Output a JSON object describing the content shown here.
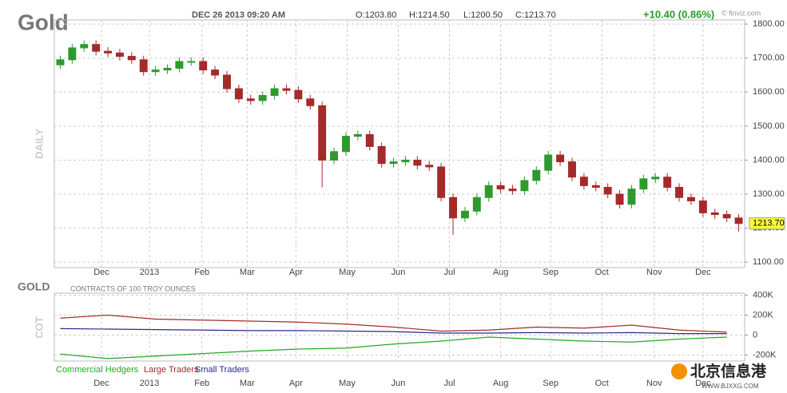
{
  "header": {
    "title": "Gold",
    "datetime": "DEC 26 2013 09:20 AM",
    "open": "O:1203.80",
    "high": "H:1214.50",
    "low": "L:1200.50",
    "close": "C:1213.70",
    "change": "+10.40 (0.86%)",
    "source": "© finviz.com",
    "panel_label": "DAILY",
    "watermark": "北京信息港",
    "watermark_url": "WWW.BJXXG.COM"
  },
  "chart_data": [
    {
      "type": "candlestick",
      "ylim": [
        1084,
        1812
      ],
      "xlim": [
        -0.5,
        57.5
      ],
      "yticks": [
        {
          "value": 1100,
          "label": "1100.00"
        },
        {
          "value": 1200,
          "label": "1200.00"
        },
        {
          "value": 1300,
          "label": "1300.00"
        },
        {
          "value": 1400,
          "label": "1400.00"
        },
        {
          "value": 1500,
          "label": "1500.00"
        },
        {
          "value": 1600,
          "label": "1600.00"
        },
        {
          "value": 1700,
          "label": "1700.00"
        },
        {
          "value": 1800,
          "label": "1800.00"
        }
      ],
      "xticks": [
        {
          "value": 3.46,
          "label": "Dec"
        },
        {
          "value": 7.49,
          "label": "2013"
        },
        {
          "value": 11.9,
          "label": "Feb"
        },
        {
          "value": 15.7,
          "label": "Mar"
        },
        {
          "value": 19.8,
          "label": "Apr"
        },
        {
          "value": 24.1,
          "label": "May"
        },
        {
          "value": 28.4,
          "label": "Jun"
        },
        {
          "value": 32.7,
          "label": "Jul"
        },
        {
          "value": 37.0,
          "label": "Aug"
        },
        {
          "value": 41.2,
          "label": "Sep"
        },
        {
          "value": 45.5,
          "label": "Oct"
        },
        {
          "value": 49.9,
          "label": "Nov"
        },
        {
          "value": 54.0,
          "label": "Dec"
        }
      ],
      "up_color": "#2e9a2e",
      "down_color": "#a52a2a",
      "grid": true,
      "open": [
        1680,
        1695,
        1730,
        1740,
        1720,
        1715,
        1705,
        1695,
        1660,
        1665,
        1670,
        1690,
        1690,
        1665,
        1650,
        1610,
        1580,
        1575,
        1590,
        1610,
        1605,
        1580,
        1560,
        1400,
        1425,
        1470,
        1475,
        1440,
        1390,
        1395,
        1400,
        1385,
        1380,
        1290,
        1230,
        1250,
        1290,
        1325,
        1315,
        1310,
        1340,
        1370,
        1415,
        1395,
        1350,
        1325,
        1320,
        1300,
        1270,
        1315,
        1345,
        1350,
        1320,
        1290,
        1280,
        1245,
        1240,
        1230
      ],
      "high": [
        1707,
        1742,
        1752,
        1752,
        1732,
        1727,
        1717,
        1707,
        1677,
        1682,
        1702,
        1702,
        1702,
        1677,
        1662,
        1622,
        1592,
        1602,
        1622,
        1622,
        1617,
        1592,
        1572,
        1437,
        1482,
        1487,
        1487,
        1452,
        1407,
        1412,
        1412,
        1397,
        1392,
        1302,
        1262,
        1302,
        1337,
        1337,
        1327,
        1352,
        1382,
        1427,
        1427,
        1407,
        1362,
        1337,
        1332,
        1312,
        1327,
        1357,
        1362,
        1362,
        1332,
        1302,
        1292,
        1257,
        1252,
        1242
      ],
      "low": [
        1668,
        1683,
        1718,
        1708,
        1703,
        1693,
        1683,
        1648,
        1648,
        1653,
        1658,
        1678,
        1653,
        1638,
        1598,
        1568,
        1563,
        1563,
        1578,
        1593,
        1568,
        1548,
        1320,
        1388,
        1413,
        1458,
        1428,
        1378,
        1378,
        1383,
        1373,
        1368,
        1278,
        1180,
        1218,
        1238,
        1278,
        1303,
        1298,
        1298,
        1328,
        1358,
        1383,
        1338,
        1313,
        1308,
        1288,
        1258,
        1258,
        1303,
        1333,
        1308,
        1278,
        1268,
        1233,
        1228,
        1218,
        1190
      ],
      "close": [
        1695,
        1730,
        1740,
        1720,
        1715,
        1705,
        1695,
        1660,
        1665,
        1670,
        1690,
        1690,
        1665,
        1650,
        1610,
        1580,
        1575,
        1590,
        1610,
        1605,
        1580,
        1560,
        1400,
        1425,
        1470,
        1475,
        1440,
        1390,
        1395,
        1400,
        1385,
        1380,
        1290,
        1230,
        1250,
        1290,
        1325,
        1315,
        1310,
        1340,
        1370,
        1415,
        1395,
        1350,
        1325,
        1320,
        1300,
        1270,
        1315,
        1345,
        1350,
        1320,
        1290,
        1280,
        1245,
        1240,
        1230,
        1213.7
      ],
      "last_price_label": "1213.70"
    },
    {
      "type": "line",
      "title": "GOLD",
      "subtitle": "CONTRACTS OF 100 TROY OUNCES",
      "ylabel": "COT",
      "ylim": [
        -260000,
        420000
      ],
      "xlim": [
        -0.5,
        57.5
      ],
      "yticks": [
        {
          "value": 400000,
          "label": "400K"
        },
        {
          "value": 200000,
          "label": "200K"
        },
        0,
        {
          "value": -200000,
          "label": "-200K"
        }
      ],
      "xticks": [
        {
          "value": 3.46,
          "label": "Dec"
        },
        {
          "value": 7.49,
          "label": "2013"
        },
        {
          "value": 11.9,
          "label": "Feb"
        },
        {
          "value": 15.7,
          "label": "Mar"
        },
        {
          "value": 19.8,
          "label": "Apr"
        },
        {
          "value": 24.1,
          "label": "May"
        },
        {
          "value": 28.4,
          "label": "Jun"
        },
        {
          "value": 32.7,
          "label": "Jul"
        },
        {
          "value": 37.0,
          "label": "Aug"
        },
        {
          "value": 41.2,
          "label": "Sep"
        },
        {
          "value": 45.5,
          "label": "Oct"
        },
        {
          "value": 49.9,
          "label": "Nov"
        },
        {
          "value": 54.0,
          "label": "Dec"
        }
      ],
      "grid": true,
      "x": [
        0,
        4,
        8,
        12,
        16,
        20,
        24,
        28,
        32,
        36,
        40,
        44,
        48,
        52,
        56
      ],
      "series": [
        {
          "name": "Commercial Hedgers",
          "color": "#22aa22",
          "values": [
            -190000,
            -235000,
            -210000,
            -185000,
            -160000,
            -140000,
            -130000,
            -90000,
            -60000,
            -20000,
            -40000,
            -60000,
            -70000,
            -40000,
            -20000
          ]
        },
        {
          "name": "Large Traders",
          "color": "#a52a2a",
          "values": [
            170000,
            200000,
            160000,
            150000,
            140000,
            130000,
            110000,
            80000,
            40000,
            50000,
            80000,
            70000,
            100000,
            50000,
            30000
          ]
        },
        {
          "name": "Small Traders",
          "color": "#2a2a8a",
          "values": [
            65000,
            60000,
            55000,
            50000,
            45000,
            45000,
            40000,
            35000,
            20000,
            20000,
            25000,
            20000,
            25000,
            15000,
            15000
          ]
        }
      ]
    }
  ]
}
